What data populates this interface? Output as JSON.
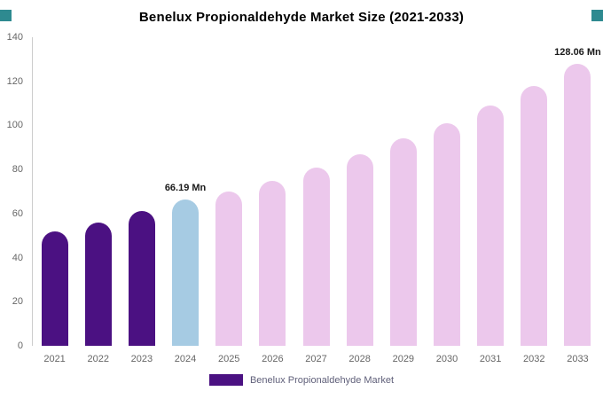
{
  "corner_accent_color": "#2e8a90",
  "chart_data": {
    "type": "bar",
    "title": "Benelux Propionaldehyde Market Size (2021-2033)",
    "categories": [
      "2021",
      "2022",
      "2023",
      "2024",
      "2025",
      "2026",
      "2027",
      "2028",
      "2029",
      "2030",
      "2031",
      "2032",
      "2033"
    ],
    "values": [
      52,
      56,
      61,
      66.19,
      70,
      75,
      81,
      87,
      94,
      101,
      109,
      118,
      128.06
    ],
    "bar_styles": [
      "dark",
      "dark",
      "dark",
      "highlight",
      "forecast",
      "forecast",
      "forecast",
      "forecast",
      "forecast",
      "forecast",
      "forecast",
      "forecast",
      "forecast"
    ],
    "colors": {
      "dark": "#4b1182",
      "highlight": "#a6cbe3",
      "forecast": "#ecc8ec"
    },
    "annotations": [
      {
        "index": 3,
        "label": "66.19 Mn"
      },
      {
        "index": 12,
        "label": "128.06 Mn"
      }
    ],
    "ylim": [
      0,
      140
    ],
    "yticks": [
      0,
      20,
      40,
      60,
      80,
      100,
      120,
      140
    ],
    "grid": false,
    "legend_position": "bottom",
    "legend_label": "Benelux Propionaldehyde Market"
  }
}
